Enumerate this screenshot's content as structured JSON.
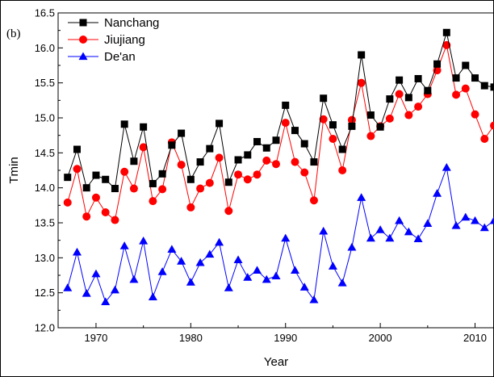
{
  "chart_data": {
    "type": "line",
    "panel_label": "(b)",
    "xlabel": "Year",
    "ylabel": "Tmin",
    "xlim": [
      1966,
      2012
    ],
    "ylim": [
      12.0,
      16.5
    ],
    "x_ticks": [
      1970,
      1980,
      1990,
      2000,
      2010
    ],
    "x_tick_labels": [
      "1970",
      "1980",
      "1990",
      "2000",
      "2010"
    ],
    "y_ticks": [
      12.0,
      12.5,
      13.0,
      13.5,
      14.0,
      14.5,
      15.0,
      15.5,
      16.0,
      16.5
    ],
    "y_tick_labels": [
      "12.0",
      "12.5",
      "13.0",
      "13.5",
      "14.0",
      "14.5",
      "15.0",
      "15.5",
      "16.0",
      "16.5"
    ],
    "grid": false,
    "legend_position": "top-left",
    "x": [
      1967,
      1968,
      1969,
      1970,
      1971,
      1972,
      1973,
      1974,
      1975,
      1976,
      1977,
      1978,
      1979,
      1980,
      1981,
      1982,
      1983,
      1984,
      1985,
      1986,
      1987,
      1988,
      1989,
      1990,
      1991,
      1992,
      1993,
      1994,
      1995,
      1996,
      1997,
      1998,
      1999,
      2000,
      2001,
      2002,
      2003,
      2004,
      2005,
      2006,
      2007,
      2008,
      2009,
      2010,
      2011,
      2012
    ],
    "series": [
      {
        "name": "Nanchang",
        "color": "#000000",
        "marker": "square",
        "values": [
          14.15,
          14.55,
          14.0,
          14.18,
          14.12,
          13.99,
          14.91,
          14.38,
          14.87,
          14.06,
          14.2,
          14.61,
          14.78,
          14.12,
          14.37,
          14.56,
          14.92,
          14.08,
          14.4,
          14.47,
          14.66,
          14.57,
          14.68,
          15.18,
          14.82,
          14.63,
          14.37,
          15.28,
          14.9,
          14.55,
          14.88,
          15.9,
          15.04,
          14.87,
          15.27,
          15.54,
          15.29,
          15.56,
          15.39,
          15.77,
          16.22,
          15.57,
          15.75,
          15.57,
          15.46,
          15.44
        ]
      },
      {
        "name": "Jiujiang",
        "color": "#ff0000",
        "marker": "circle",
        "values": [
          13.79,
          14.27,
          13.59,
          13.86,
          13.65,
          13.54,
          14.23,
          13.99,
          14.58,
          13.81,
          13.98,
          14.65,
          14.33,
          13.72,
          13.99,
          14.07,
          14.43,
          13.67,
          14.19,
          14.12,
          14.19,
          14.39,
          14.34,
          14.93,
          14.37,
          14.22,
          13.82,
          14.98,
          14.7,
          14.25,
          14.97,
          15.5,
          14.74,
          14.88,
          14.99,
          15.34,
          15.04,
          15.16,
          15.34,
          15.68,
          16.04,
          15.33,
          15.42,
          15.05,
          14.7,
          14.89
        ]
      },
      {
        "name": "De'an",
        "color": "#0000ff",
        "marker": "triangle",
        "values": [
          12.57,
          13.08,
          12.49,
          12.77,
          12.37,
          12.54,
          13.17,
          12.69,
          13.24,
          12.44,
          12.8,
          13.12,
          12.95,
          12.65,
          12.93,
          13.05,
          13.22,
          12.57,
          12.97,
          12.72,
          12.82,
          12.69,
          12.74,
          13.28,
          12.82,
          12.58,
          12.4,
          13.38,
          12.88,
          12.64,
          13.15,
          13.86,
          13.28,
          13.4,
          13.28,
          13.53,
          13.37,
          13.27,
          13.49,
          13.92,
          14.29,
          13.46,
          13.58,
          13.53,
          13.43,
          13.53
        ]
      }
    ]
  }
}
